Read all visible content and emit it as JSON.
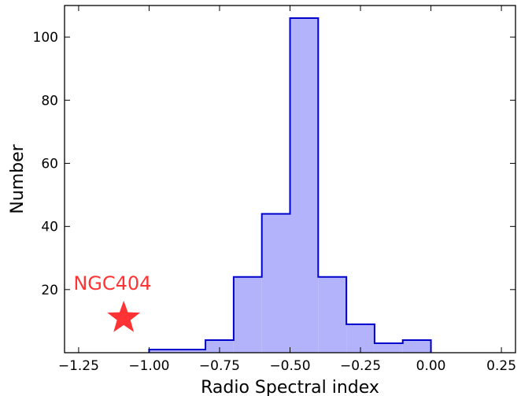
{
  "chart_data": {
    "type": "histogram",
    "xlabel": "Radio Spectral index",
    "ylabel": "Number",
    "xlim": [
      -1.3,
      0.3
    ],
    "ylim": [
      0,
      110
    ],
    "xticks": [
      -1.25,
      -1.0,
      -0.75,
      -0.5,
      -0.25,
      0.0,
      0.25
    ],
    "xtick_labels": [
      "−1.25",
      "−1.00",
      "−0.75",
      "−0.50",
      "−0.25",
      "0.00",
      "0.25"
    ],
    "yticks": [
      20,
      40,
      60,
      80,
      100
    ],
    "ytick_labels": [
      "20",
      "40",
      "60",
      "80",
      "100"
    ],
    "bin_edges": [
      -1.0,
      -0.9,
      -0.8,
      -0.7,
      -0.6,
      -0.5,
      -0.4,
      -0.3,
      -0.2,
      -0.1,
      0.0
    ],
    "counts": [
      1,
      1,
      4,
      24,
      44,
      106,
      24,
      9,
      3,
      4
    ],
    "fill_color": "#b3b3fb",
    "edge_color": "#0000cc",
    "annotation": {
      "text": "NGC404",
      "color": "#ff3333",
      "marker": "star",
      "x": -1.09,
      "y": 11
    },
    "grid": false
  }
}
